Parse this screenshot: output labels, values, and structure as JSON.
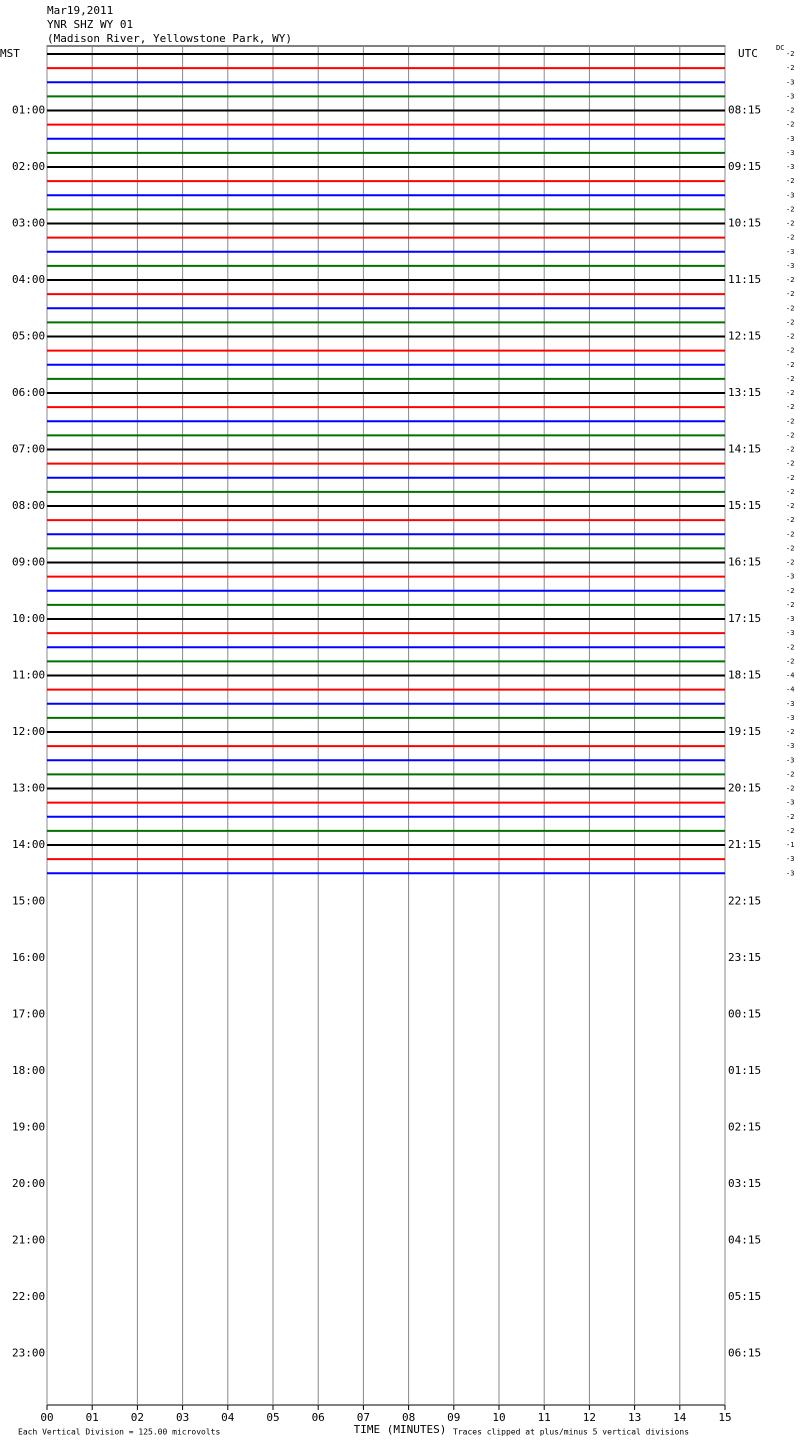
{
  "chart_data": {
    "type": "helicorder",
    "title_lines": [
      "Mar19,2011",
      "YNR SHZ WY 01",
      "(Madison River, Yellowstone Park, WY)"
    ],
    "left_zone": "MST",
    "right_zone": "UTC",
    "offset_header": "DC",
    "mst_labels": [
      "01:00",
      "02:00",
      "03:00",
      "04:00",
      "05:00",
      "06:00",
      "07:00",
      "08:00",
      "09:00",
      "10:00",
      "11:00",
      "12:00",
      "13:00",
      "14:00",
      "15:00",
      "16:00",
      "17:00",
      "18:00",
      "19:00",
      "20:00",
      "21:00",
      "22:00",
      "23:00"
    ],
    "utc_labels": [
      "08:15",
      "09:15",
      "10:15",
      "11:15",
      "12:15",
      "13:15",
      "14:15",
      "15:15",
      "16:15",
      "17:15",
      "18:15",
      "19:15",
      "20:15",
      "21:15",
      "22:15",
      "23:15",
      "00:15",
      "01:15",
      "02:15",
      "03:15",
      "04:15",
      "05:15",
      "06:15"
    ],
    "trace_colors": [
      "#000000",
      "#ff0000",
      "#0000ff",
      "#007000"
    ],
    "dc_offsets": [
      -2,
      -2,
      -3,
      -3,
      -2,
      -2,
      -3,
      -3,
      -3,
      -2,
      -3,
      -2,
      -2,
      -2,
      -3,
      -3,
      -2,
      -2,
      -2,
      -2,
      -2,
      -2,
      -2,
      -2,
      -2,
      -2,
      -2,
      -2,
      -2,
      -2,
      -2,
      -2,
      -2,
      -2,
      -2,
      -2,
      -2,
      -3,
      -2,
      -2,
      -3,
      -3,
      -2,
      -2,
      -4,
      -4,
      -3,
      -3,
      -2,
      -3,
      -3,
      -2,
      -2,
      -3,
      -2,
      -2,
      -1,
      -3,
      -3
    ],
    "xlim": [
      0,
      15
    ],
    "xticks": [
      {
        "value": 0,
        "label": "00"
      },
      {
        "value": 1,
        "label": "01"
      },
      {
        "value": 2,
        "label": "02"
      },
      {
        "value": 3,
        "label": "03"
      },
      {
        "value": 4,
        "label": "04"
      },
      {
        "value": 5,
        "label": "05"
      },
      {
        "value": 6,
        "label": "06"
      },
      {
        "value": 7,
        "label": "07"
      },
      {
        "value": 8,
        "label": "08"
      },
      {
        "value": 9,
        "label": "09"
      },
      {
        "value": 10,
        "label": "10"
      },
      {
        "value": 11,
        "label": "11"
      },
      {
        "value": 12,
        "label": "12"
      },
      {
        "value": 13,
        "label": "13"
      },
      {
        "value": 14,
        "label": "14"
      },
      {
        "value": 15,
        "label": "15"
      }
    ],
    "x_label": "TIME (MINUTES)",
    "footer_left": "Each Vertical Division =  125.00 microvolts",
    "footer_right": "Traces clipped at plus/minus 5 vertical divisions"
  }
}
